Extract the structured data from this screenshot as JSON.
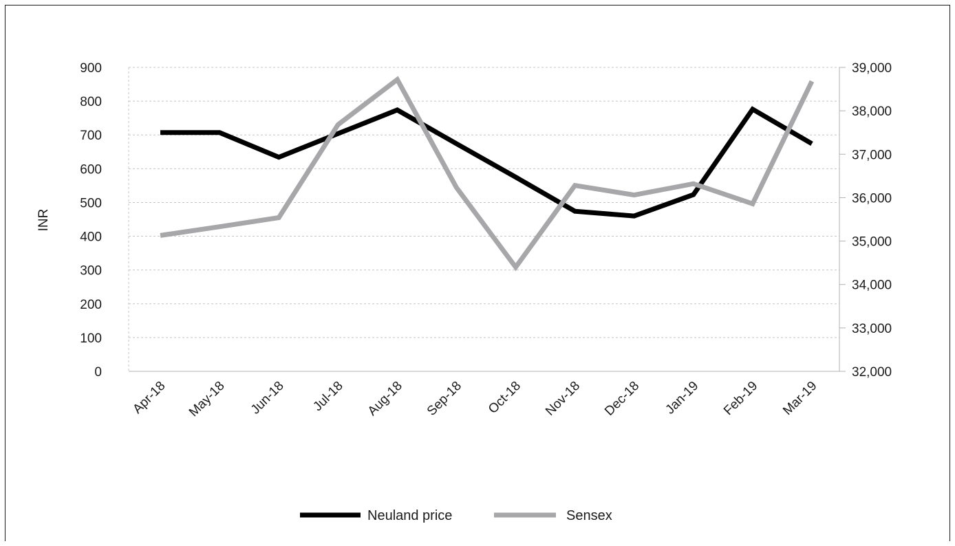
{
  "chart_data": {
    "type": "line",
    "title": "",
    "xlabel": "",
    "ylabel": "INR",
    "y2label": "",
    "categories": [
      "Apr-18",
      "May-18",
      "Jun-18",
      "Jul-18",
      "Aug-18",
      "Sep-18",
      "Oct-18",
      "Nov-18",
      "Dec-18",
      "Jan-19",
      "Feb-19",
      "Mar-19"
    ],
    "ylim": [
      0,
      900
    ],
    "y2lim": [
      32000,
      39000
    ],
    "yticks": [
      "0",
      "100",
      "200",
      "300",
      "400",
      "500",
      "600",
      "700",
      "800",
      "900"
    ],
    "y2ticks": [
      "32,000",
      "33,000",
      "34,000",
      "35,000",
      "36,000",
      "37,000",
      "38,000",
      "39,000"
    ],
    "grid": true,
    "legend_position": "bottom",
    "series": [
      {
        "name": "Neuland price",
        "axis": "left",
        "color": "#000000",
        "values": [
          707,
          707,
          634,
          704,
          774,
          674,
          575,
          474,
          460,
          523,
          776,
          674
        ]
      },
      {
        "name": "Sensex",
        "axis": "right",
        "color": "#a7a7aa",
        "values": [
          35130,
          35330,
          35540,
          37680,
          38720,
          36230,
          34400,
          36280,
          36060,
          36320,
          35860,
          38680
        ]
      }
    ]
  }
}
